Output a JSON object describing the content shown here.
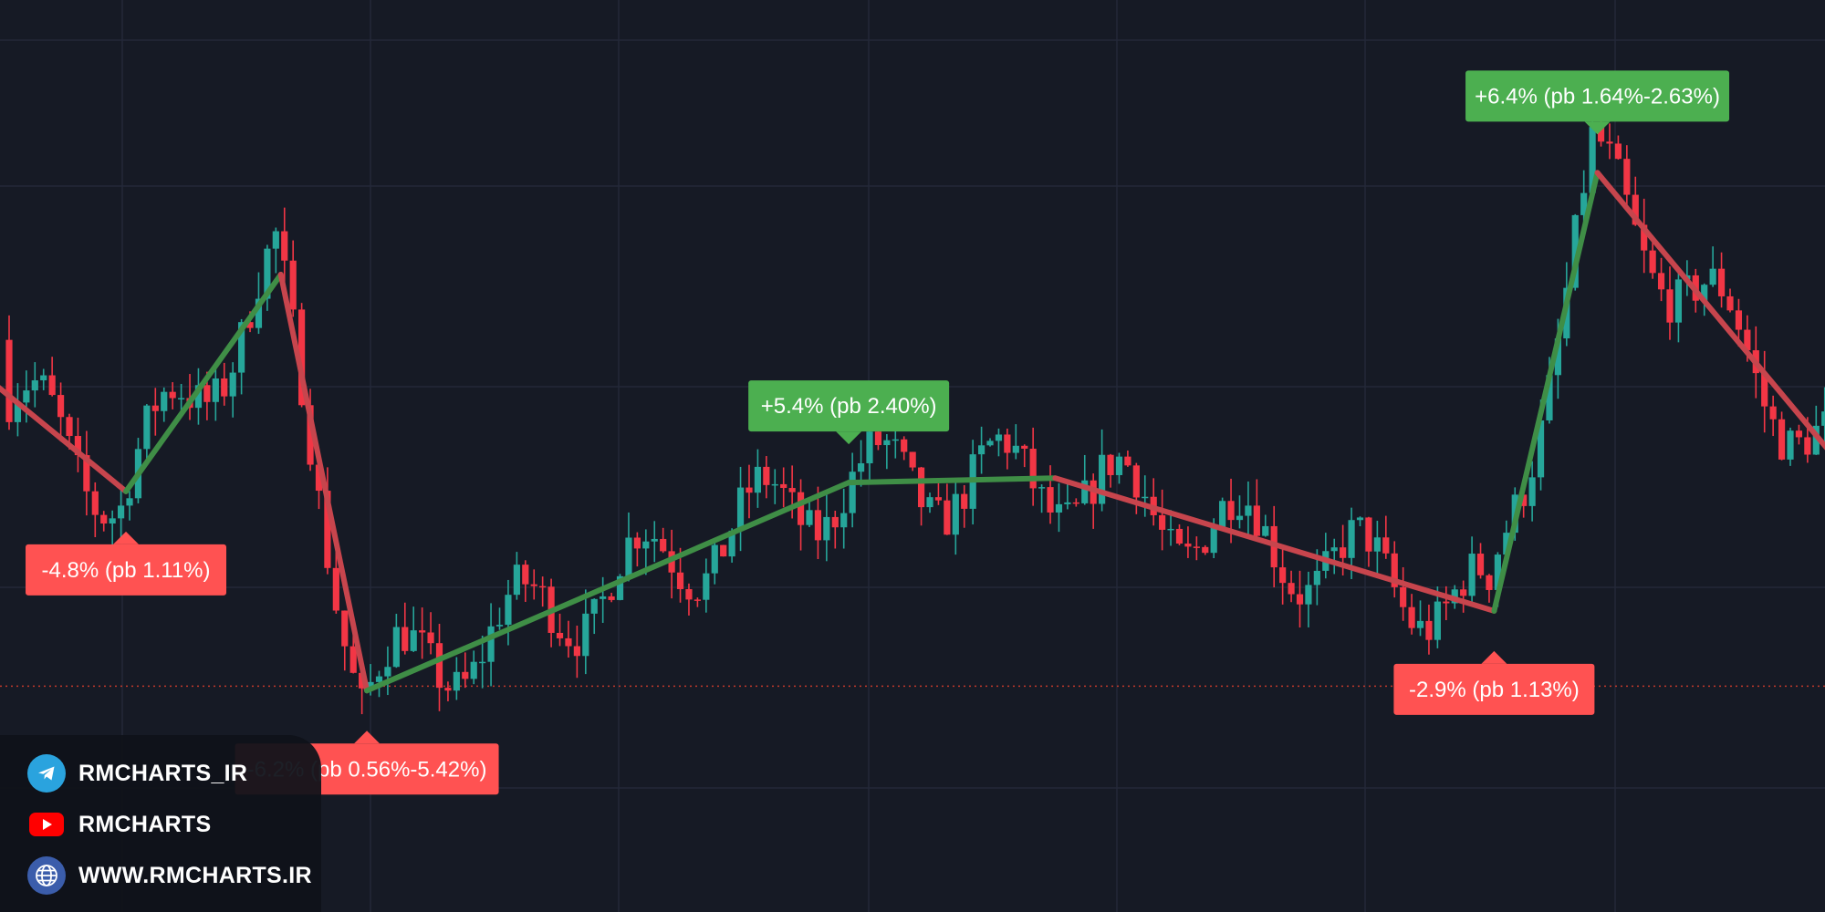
{
  "colors": {
    "background": "#161a25",
    "grid": "#232838",
    "bull": "#26a69a",
    "bear": "#f23645",
    "zig_up": "#3f8e46",
    "zig_down": "#c7454d",
    "label_up": "#4caf50",
    "label_down": "#ff5252",
    "price_line": "#c0392b"
  },
  "chart_data": {
    "type": "candlestick",
    "title": "",
    "xlabel": "",
    "ylabel": "",
    "price_scale": [
      91.0,
      101.3
    ],
    "bars": 212,
    "current_price_line": 93.55,
    "candles_ohlc": [],
    "zigzag_pivots": [
      {
        "bar": -20,
        "price": 98.45
      },
      {
        "bar": 14,
        "price": 95.75
      },
      {
        "bar": 32,
        "price": 98.2
      },
      {
        "bar": 42,
        "price": 93.5
      },
      {
        "bar": 98,
        "price": 95.85
      },
      {
        "bar": 122,
        "price": 95.9
      },
      {
        "bar": 173,
        "price": 94.4
      },
      {
        "bar": 185,
        "price": 99.35
      },
      {
        "bar": 212,
        "price": 96.2
      }
    ],
    "swing_labels": [
      {
        "bar": 14,
        "price": 95.75,
        "direction": "down",
        "text": "-4.8% (pb 1.11%)"
      },
      {
        "bar": 42,
        "price": 93.5,
        "direction": "down",
        "text": "-6.2% (pb 0.56%-5.42%)"
      },
      {
        "bar": 98,
        "price": 95.85,
        "direction": "up",
        "text": "+5.4% (pb 2.40%)"
      },
      {
        "bar": 173,
        "price": 94.4,
        "direction": "down",
        "text": "-2.9% (pb 1.13%)"
      },
      {
        "bar": 185,
        "price": 99.35,
        "direction": "up",
        "text": "+6.4% (pb 1.64%-2.63%)"
      }
    ]
  },
  "branding": {
    "telegram": {
      "icon": "telegram-icon",
      "text": "RMCHARTS_IR"
    },
    "youtube": {
      "icon": "youtube-icon",
      "text": "RMCHARTS"
    },
    "website": {
      "icon": "globe-icon",
      "text": "WWW.RMCHARTS.IR"
    }
  }
}
